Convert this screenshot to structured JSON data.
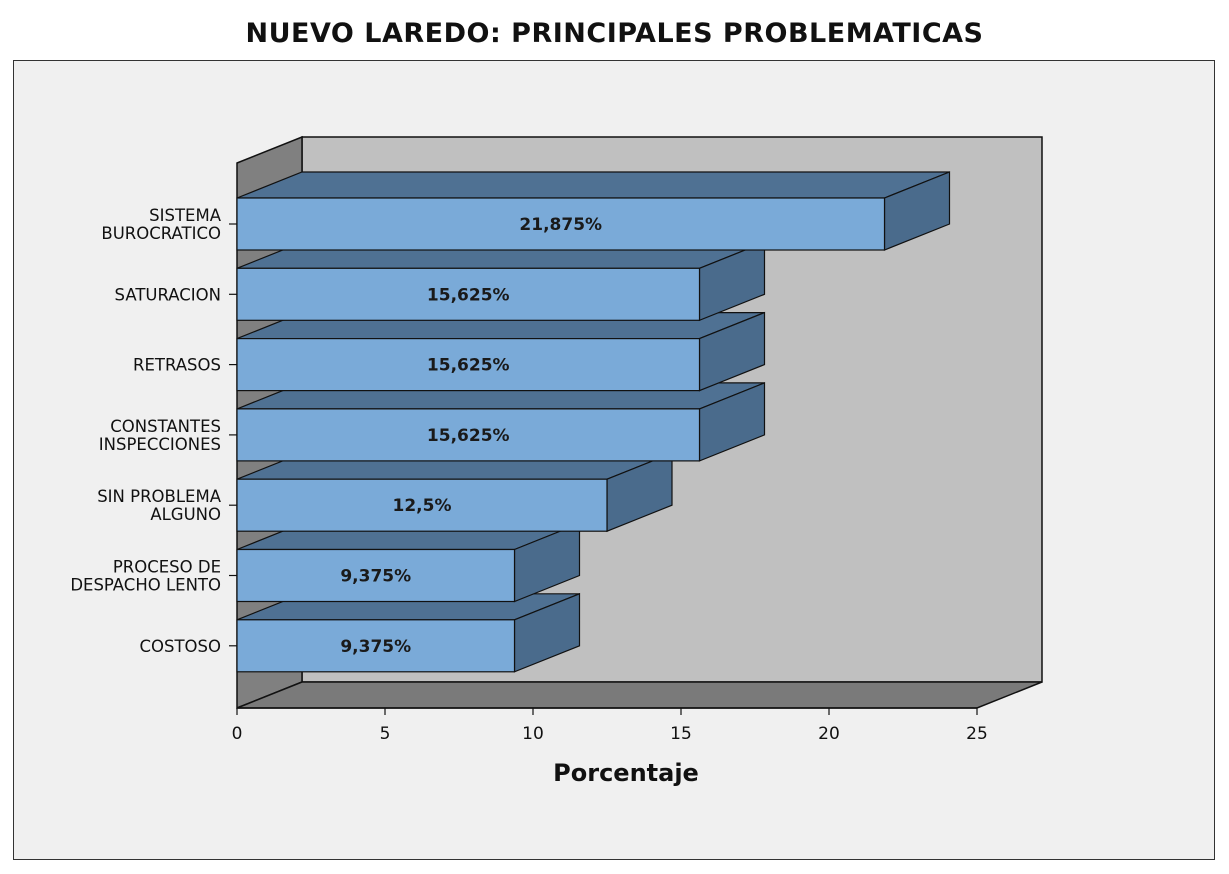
{
  "chart_data": {
    "type": "bar",
    "orientation": "horizontal",
    "three_d": true,
    "title": "NUEVO LAREDO: PRINCIPALES PROBLEMATICAS",
    "xlabel": "Porcentaje",
    "ylabel": "",
    "xlim": [
      0,
      25
    ],
    "xticks": [
      0,
      5,
      10,
      15,
      20,
      25
    ],
    "categories": [
      [
        "SISTEMA",
        "BUROCRATICO"
      ],
      [
        "SATURACION"
      ],
      [
        "RETRASOS"
      ],
      [
        "CONSTANTES",
        "INSPECCIONES"
      ],
      [
        "SIN PROBLEMA",
        "ALGUNO"
      ],
      [
        "PROCESO DE",
        "DESPACHO LENTO"
      ],
      [
        "COSTOSO"
      ]
    ],
    "values": [
      21.875,
      15.625,
      15.625,
      15.625,
      12.5,
      9.375,
      9.375
    ],
    "data_labels": [
      "21,875%",
      "15,625%",
      "15,625%",
      "15,625%",
      "12,5%",
      "9,375%",
      "9,375%"
    ],
    "grid": false,
    "legend": "none",
    "colors": {
      "bar_front": "#7aaad8",
      "bar_side": "#4a6b8c",
      "bar_top": "#4f7193",
      "back_wall": "#c0c0c0",
      "left_wall": "#808080",
      "floor": "#7a7a7a",
      "frame_bg": "#f0f0f0"
    }
  }
}
